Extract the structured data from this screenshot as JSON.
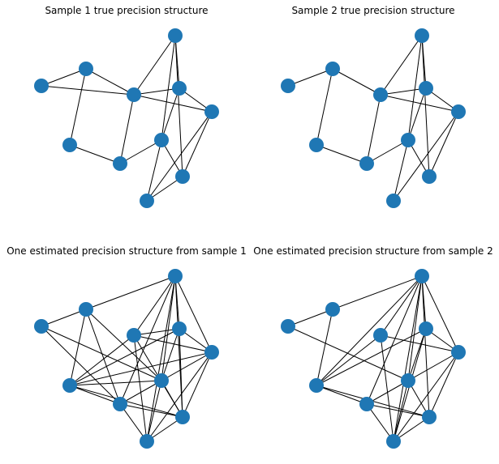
{
  "colors": {
    "node": "#1f77b4",
    "edge": "#000000",
    "background": "#ffffff"
  },
  "panels": [
    {
      "title": "Sample 1 true precision structure",
      "edges": [
        [
          0,
          1
        ],
        [
          0,
          2
        ],
        [
          1,
          3
        ],
        [
          1,
          2
        ],
        [
          3,
          4
        ],
        [
          4,
          5
        ],
        [
          4,
          2
        ],
        [
          2,
          6
        ],
        [
          2,
          7
        ],
        [
          2,
          8
        ],
        [
          6,
          7
        ],
        [
          6,
          9
        ],
        [
          6,
          5
        ],
        [
          7,
          5
        ],
        [
          7,
          8
        ],
        [
          8,
          9
        ],
        [
          8,
          10
        ],
        [
          5,
          10
        ],
        [
          5,
          9
        ],
        [
          9,
          10
        ]
      ]
    },
    {
      "title": "Sample 2 true precision structure",
      "edges": [
        [
          0,
          1
        ],
        [
          1,
          3
        ],
        [
          1,
          2
        ],
        [
          3,
          4
        ],
        [
          4,
          5
        ],
        [
          4,
          2
        ],
        [
          2,
          6
        ],
        [
          2,
          7
        ],
        [
          2,
          8
        ],
        [
          6,
          7
        ],
        [
          6,
          9
        ],
        [
          6,
          5
        ],
        [
          7,
          5
        ],
        [
          7,
          8
        ],
        [
          8,
          9
        ],
        [
          8,
          10
        ],
        [
          5,
          10
        ],
        [
          5,
          9
        ]
      ]
    },
    {
      "title": "One estimated precision structure from sample 1",
      "edges": [
        [
          0,
          1
        ],
        [
          0,
          4
        ],
        [
          1,
          3
        ],
        [
          1,
          6
        ],
        [
          1,
          5
        ],
        [
          1,
          4
        ],
        [
          0,
          5
        ],
        [
          3,
          2
        ],
        [
          3,
          4
        ],
        [
          3,
          5
        ],
        [
          3,
          7
        ],
        [
          3,
          8
        ],
        [
          3,
          9
        ],
        [
          4,
          6
        ],
        [
          4,
          8
        ],
        [
          4,
          9
        ],
        [
          4,
          10
        ],
        [
          4,
          5
        ],
        [
          2,
          6
        ],
        [
          2,
          8
        ],
        [
          2,
          9
        ],
        [
          2,
          10
        ],
        [
          6,
          7
        ],
        [
          6,
          9
        ],
        [
          6,
          8
        ],
        [
          6,
          10
        ],
        [
          6,
          5
        ],
        [
          7,
          5
        ],
        [
          7,
          8
        ],
        [
          7,
          9
        ],
        [
          8,
          9
        ],
        [
          8,
          10
        ],
        [
          5,
          10
        ],
        [
          5,
          9
        ],
        [
          9,
          10
        ],
        [
          2,
          7
        ]
      ]
    },
    {
      "title": "One estimated precision structure from sample 2",
      "edges": [
        [
          0,
          1
        ],
        [
          0,
          5
        ],
        [
          1,
          6
        ],
        [
          1,
          3
        ],
        [
          3,
          6
        ],
        [
          3,
          2
        ],
        [
          3,
          4
        ],
        [
          3,
          7
        ],
        [
          3,
          9
        ],
        [
          2,
          6
        ],
        [
          2,
          8
        ],
        [
          2,
          10
        ],
        [
          4,
          6
        ],
        [
          4,
          8
        ],
        [
          4,
          10
        ],
        [
          4,
          5
        ],
        [
          6,
          7
        ],
        [
          6,
          5
        ],
        [
          6,
          8
        ],
        [
          6,
          9
        ],
        [
          6,
          10
        ],
        [
          7,
          5
        ],
        [
          7,
          8
        ],
        [
          7,
          10
        ],
        [
          8,
          9
        ],
        [
          8,
          10
        ],
        [
          5,
          10
        ],
        [
          5,
          9
        ],
        [
          9,
          10
        ],
        [
          4,
          9
        ]
      ]
    }
  ]
}
